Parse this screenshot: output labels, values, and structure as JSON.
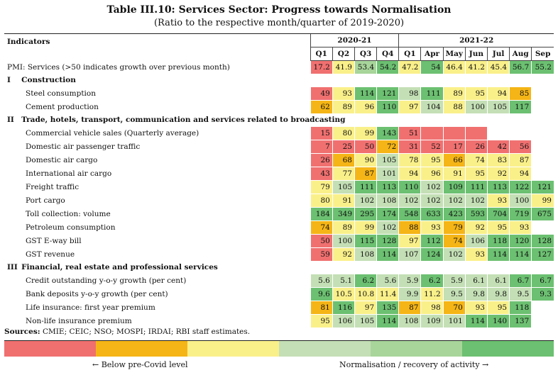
{
  "title": "Table III.10: Services Sector: Progress towards Normalisation",
  "subtitle": "(Ratio to the respective month/quarter of 2019-2020)",
  "header": {
    "indicators": "Indicators",
    "group1": "2020-21",
    "group2": "2021-22",
    "columns": [
      "Q1",
      "Q2",
      "Q3",
      "Q4",
      "Q1",
      "Apr",
      "May",
      "Jun",
      "Jul",
      "Aug",
      "Sep"
    ]
  },
  "colors": {
    "red": "#f07070",
    "orange": "#f5b516",
    "yellow": "#faf08a",
    "lightgreen": "#c4dfb5",
    "midgreen": "#a7d59a",
    "green": "#6cc071"
  },
  "rows": [
    {
      "label": "PMI: Services (>50 indicates growth over previous month)",
      "kind": "item",
      "cells": [
        [
          "17.2",
          "red"
        ],
        [
          "41.9",
          "yellow"
        ],
        [
          "53.4",
          "midgreen"
        ],
        [
          "54.2",
          "green"
        ],
        [
          "47.2",
          "yellow"
        ],
        [
          "54",
          "green"
        ],
        [
          "46.4",
          "yellow"
        ],
        [
          "41.2",
          "yellow"
        ],
        [
          "45.4",
          "yellow"
        ],
        [
          "56.7",
          "green"
        ],
        [
          "55.2",
          "green"
        ]
      ]
    },
    {
      "num": "I",
      "label": "Construction",
      "kind": "section"
    },
    {
      "label": "Steel consumption",
      "kind": "sub",
      "cells": [
        [
          "49",
          "red"
        ],
        [
          "93",
          "yellow"
        ],
        [
          "114",
          "green"
        ],
        [
          "121",
          "green"
        ],
        [
          "98",
          "lightgreen"
        ],
        [
          "111",
          "green"
        ],
        [
          "89",
          "yellow"
        ],
        [
          "95",
          "yellow"
        ],
        [
          "94",
          "yellow"
        ],
        [
          "85",
          "orange"
        ],
        [
          "",
          ""
        ]
      ]
    },
    {
      "label": "Cement production",
      "kind": "sub",
      "cells": [
        [
          "62",
          "orange"
        ],
        [
          "89",
          "yellow"
        ],
        [
          "96",
          "yellow"
        ],
        [
          "110",
          "green"
        ],
        [
          "97",
          "yellow"
        ],
        [
          "104",
          "lightgreen"
        ],
        [
          "88",
          "yellow"
        ],
        [
          "100",
          "lightgreen"
        ],
        [
          "105",
          "lightgreen"
        ],
        [
          "117",
          "green"
        ],
        [
          "",
          ""
        ]
      ]
    },
    {
      "num": "II",
      "label": "Trade, hotels, transport, communication and services related to broadcasting",
      "kind": "section"
    },
    {
      "label": "Commercial vehicle sales (Quarterly average)",
      "kind": "sub",
      "cells": [
        [
          "15",
          "red"
        ],
        [
          "80",
          "yellow"
        ],
        [
          "99",
          "yellow"
        ],
        [
          "143",
          "green"
        ],
        [
          "51",
          "red"
        ],
        [
          "",
          "red"
        ],
        [
          "",
          "red"
        ],
        [
          "",
          "red"
        ],
        [
          "",
          ""
        ],
        [
          "",
          ""
        ],
        [
          "",
          ""
        ]
      ]
    },
    {
      "label": "Domestic air passenger traffic",
      "kind": "sub",
      "cells": [
        [
          "7",
          "red"
        ],
        [
          "25",
          "red"
        ],
        [
          "50",
          "red"
        ],
        [
          "72",
          "orange"
        ],
        [
          "31",
          "red"
        ],
        [
          "52",
          "red"
        ],
        [
          "17",
          "red"
        ],
        [
          "26",
          "red"
        ],
        [
          "42",
          "red"
        ],
        [
          "56",
          "red"
        ],
        [
          "",
          ""
        ]
      ]
    },
    {
      "label": "Domestic air cargo",
      "kind": "sub",
      "cells": [
        [
          "26",
          "red"
        ],
        [
          "68",
          "orange"
        ],
        [
          "90",
          "yellow"
        ],
        [
          "105",
          "lightgreen"
        ],
        [
          "78",
          "yellow"
        ],
        [
          "95",
          "yellow"
        ],
        [
          "66",
          "orange"
        ],
        [
          "74",
          "yellow"
        ],
        [
          "83",
          "yellow"
        ],
        [
          "87",
          "yellow"
        ],
        [
          "",
          ""
        ]
      ]
    },
    {
      "label": "International air cargo",
      "kind": "sub",
      "cells": [
        [
          "43",
          "red"
        ],
        [
          "77",
          "yellow"
        ],
        [
          "87",
          "orange"
        ],
        [
          "101",
          "lightgreen"
        ],
        [
          "94",
          "yellow"
        ],
        [
          "96",
          "yellow"
        ],
        [
          "91",
          "yellow"
        ],
        [
          "95",
          "yellow"
        ],
        [
          "92",
          "yellow"
        ],
        [
          "94",
          "yellow"
        ],
        [
          "",
          ""
        ]
      ]
    },
    {
      "label": "Freight traffic",
      "kind": "sub",
      "cells": [
        [
          "79",
          "yellow"
        ],
        [
          "105",
          "lightgreen"
        ],
        [
          "111",
          "green"
        ],
        [
          "113",
          "green"
        ],
        [
          "110",
          "green"
        ],
        [
          "102",
          "lightgreen"
        ],
        [
          "109",
          "green"
        ],
        [
          "111",
          "green"
        ],
        [
          "113",
          "green"
        ],
        [
          "122",
          "green"
        ],
        [
          "121",
          "green"
        ]
      ]
    },
    {
      "label": "Port cargo",
      "kind": "sub",
      "cells": [
        [
          "80",
          "yellow"
        ],
        [
          "91",
          "yellow"
        ],
        [
          "102",
          "lightgreen"
        ],
        [
          "108",
          "lightgreen"
        ],
        [
          "102",
          "lightgreen"
        ],
        [
          "102",
          "lightgreen"
        ],
        [
          "102",
          "lightgreen"
        ],
        [
          "102",
          "lightgreen"
        ],
        [
          "93",
          "yellow"
        ],
        [
          "100",
          "lightgreen"
        ],
        [
          "99",
          "yellow"
        ]
      ]
    },
    {
      "label": "Toll collection: volume",
      "kind": "sub",
      "cells": [
        [
          "184",
          "green"
        ],
        [
          "349",
          "green"
        ],
        [
          "295",
          "green"
        ],
        [
          "174",
          "green"
        ],
        [
          "548",
          "green"
        ],
        [
          "633",
          "green"
        ],
        [
          "423",
          "green"
        ],
        [
          "593",
          "green"
        ],
        [
          "704",
          "green"
        ],
        [
          "719",
          "green"
        ],
        [
          "675",
          "green"
        ]
      ]
    },
    {
      "label": "Petroleum consumption",
      "kind": "sub",
      "cells": [
        [
          "74",
          "orange"
        ],
        [
          "89",
          "yellow"
        ],
        [
          "99",
          "yellow"
        ],
        [
          "102",
          "lightgreen"
        ],
        [
          "88",
          "orange"
        ],
        [
          "93",
          "yellow"
        ],
        [
          "79",
          "orange"
        ],
        [
          "92",
          "yellow"
        ],
        [
          "95",
          "yellow"
        ],
        [
          "93",
          "yellow"
        ],
        [
          "",
          ""
        ]
      ]
    },
    {
      "label": "GST E-way bill",
      "kind": "sub",
      "cells": [
        [
          "50",
          "red"
        ],
        [
          "100",
          "lightgreen"
        ],
        [
          "115",
          "green"
        ],
        [
          "128",
          "green"
        ],
        [
          "97",
          "yellow"
        ],
        [
          "112",
          "green"
        ],
        [
          "74",
          "orange"
        ],
        [
          "106",
          "lightgreen"
        ],
        [
          "118",
          "green"
        ],
        [
          "120",
          "green"
        ],
        [
          "128",
          "green"
        ]
      ]
    },
    {
      "label": "GST revenue",
      "kind": "sub",
      "cells": [
        [
          "59",
          "red"
        ],
        [
          "92",
          "yellow"
        ],
        [
          "108",
          "lightgreen"
        ],
        [
          "114",
          "green"
        ],
        [
          "107",
          "lightgreen"
        ],
        [
          "124",
          "green"
        ],
        [
          "102",
          "lightgreen"
        ],
        [
          "93",
          "yellow"
        ],
        [
          "114",
          "green"
        ],
        [
          "114",
          "green"
        ],
        [
          "127",
          "green"
        ]
      ]
    },
    {
      "num": "III",
      "label": "Financial, real estate and professional services",
      "kind": "section"
    },
    {
      "label": "Credit outstanding y-o-y growth (per cent)",
      "kind": "sub",
      "cells": [
        [
          "5.6",
          "lightgreen"
        ],
        [
          "5.1",
          "lightgreen"
        ],
        [
          "6.2",
          "green"
        ],
        [
          "5.6",
          "lightgreen"
        ],
        [
          "5.9",
          "lightgreen"
        ],
        [
          "6.2",
          "green"
        ],
        [
          "5.9",
          "lightgreen"
        ],
        [
          "6.1",
          "lightgreen"
        ],
        [
          "6.1",
          "lightgreen"
        ],
        [
          "6.7",
          "green"
        ],
        [
          "6.7",
          "green"
        ]
      ]
    },
    {
      "label": "Bank deposits y-o-y growth (per cent)",
      "kind": "sub",
      "cells": [
        [
          "9.6",
          "green"
        ],
        [
          "10.5",
          "yellow"
        ],
        [
          "10.8",
          "yellow"
        ],
        [
          "11.4",
          "yellow"
        ],
        [
          "9.9",
          "lightgreen"
        ],
        [
          "11.2",
          "yellow"
        ],
        [
          "9.5",
          "lightgreen"
        ],
        [
          "9.8",
          "lightgreen"
        ],
        [
          "9.8",
          "lightgreen"
        ],
        [
          "9.5",
          "lightgreen"
        ],
        [
          "9.3",
          "green"
        ]
      ]
    },
    {
      "label": "Life insurance: first year premium",
      "kind": "sub",
      "cells": [
        [
          "81",
          "orange"
        ],
        [
          "116",
          "green"
        ],
        [
          "97",
          "yellow"
        ],
        [
          "135",
          "green"
        ],
        [
          "87",
          "orange"
        ],
        [
          "98",
          "yellow"
        ],
        [
          "70",
          "orange"
        ],
        [
          "93",
          "yellow"
        ],
        [
          "95",
          "yellow"
        ],
        [
          "118",
          "green"
        ],
        [
          "",
          ""
        ]
      ]
    },
    {
      "label": "Non-life insurance premium",
      "kind": "sub",
      "cells": [
        [
          "95",
          "yellow"
        ],
        [
          "106",
          "lightgreen"
        ],
        [
          "105",
          "lightgreen"
        ],
        [
          "114",
          "green"
        ],
        [
          "108",
          "lightgreen"
        ],
        [
          "109",
          "lightgreen"
        ],
        [
          "101",
          "lightgreen"
        ],
        [
          "114",
          "green"
        ],
        [
          "140",
          "green"
        ],
        [
          "137",
          "green"
        ],
        [
          "",
          ""
        ]
      ]
    }
  ],
  "sources": {
    "label": "Sources:",
    "text": "CMIE; CEIC; NSO; MOSPI; IRDAI; RBI staff estimates."
  },
  "legend": {
    "swatches": [
      "#f07070",
      "#f5b516",
      "#faf08a",
      "#c4dfb5",
      "#a7d59a",
      "#6cc071"
    ],
    "left": "← Below pre-Covid level",
    "right": "Normalisation / recovery of activity →"
  }
}
